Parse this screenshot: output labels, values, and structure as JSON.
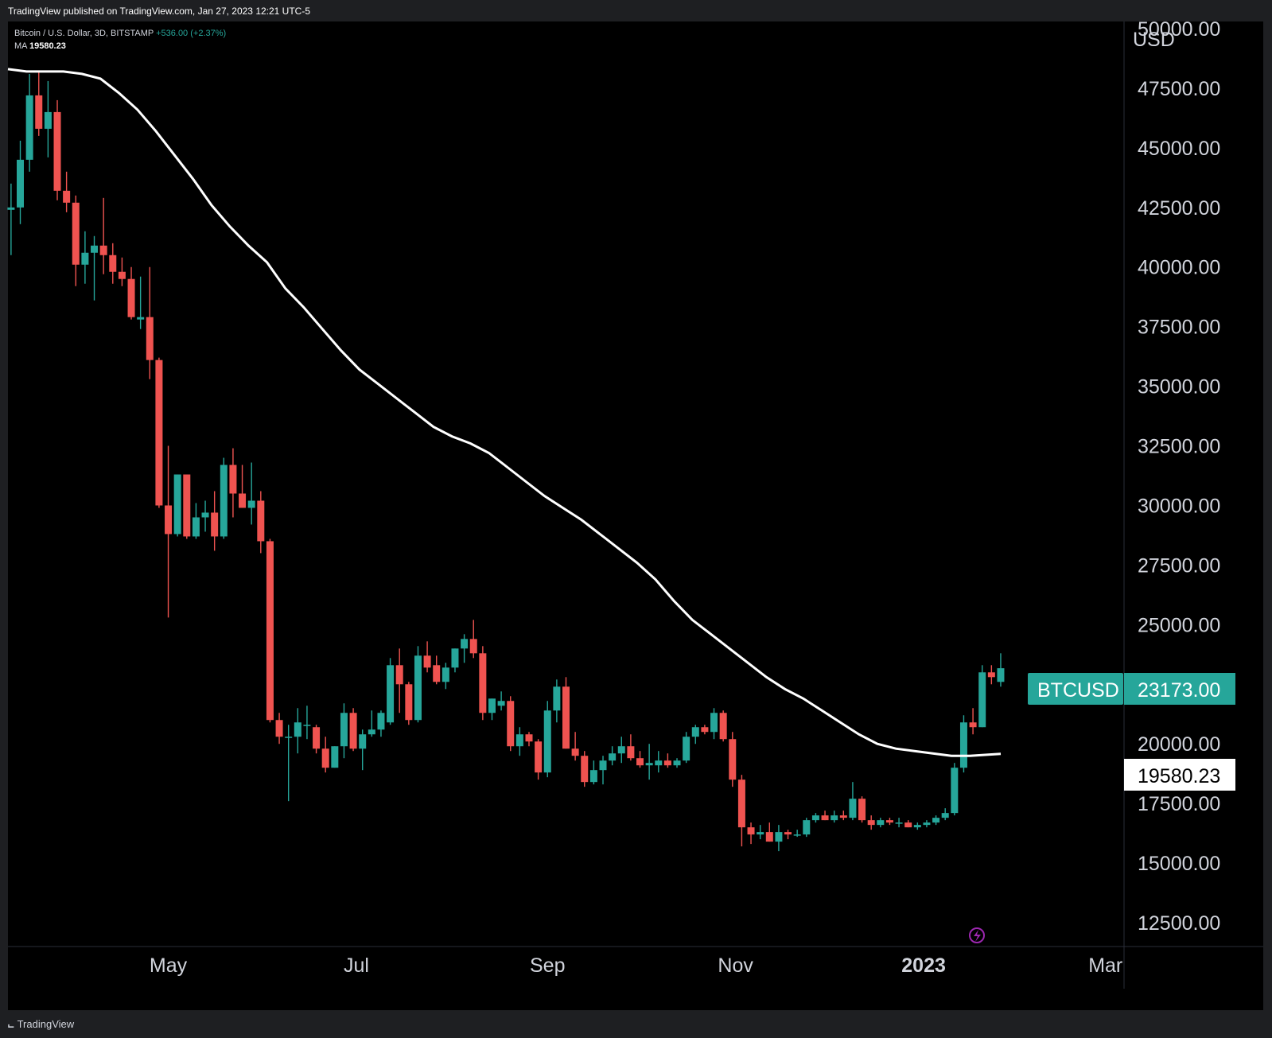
{
  "header": {
    "published": "TradingView published on TradingView.com, Jan 27, 2023 12:21 UTC-5"
  },
  "legend": {
    "symbol": "Bitcoin / U.S. Dollar, 3D, BITSTAMP",
    "change": "+536.00 (+2.37%)",
    "ma_label": "MA",
    "ma_value": "19580.23"
  },
  "footer": {
    "brand": "TradingView",
    "brand_icon": "tradingview-logo-icon"
  },
  "colors": {
    "up": "#26a69a",
    "down": "#ef5350",
    "ma": "#ffffff",
    "background": "#000000"
  },
  "chart_data": {
    "type": "candlestick",
    "symbol": "BTCUSD",
    "interval": "3D",
    "currency_label": "USD",
    "y_ticks": [
      "50000.00",
      "47500.00",
      "45000.00",
      "42500.00",
      "40000.00",
      "37500.00",
      "35000.00",
      "32500.00",
      "30000.00",
      "27500.00",
      "25000.00",
      "22500.00",
      "20000.00",
      "17500.00",
      "15000.00",
      "12500.00"
    ],
    "ylim": [
      11500,
      50300
    ],
    "x_tick_labels": [
      {
        "label": "May",
        "date": "2022-05-01",
        "bold": false
      },
      {
        "label": "Jul",
        "date": "2022-07-01",
        "bold": false
      },
      {
        "label": "Sep",
        "date": "2022-09-01",
        "bold": false
      },
      {
        "label": "Nov",
        "date": "2022-11-01",
        "bold": false
      },
      {
        "label": "2023",
        "date": "2023-01-01",
        "bold": true
      },
      {
        "label": "Mar",
        "date": "2023-03-01",
        "bold": false
      }
    ],
    "xlim": [
      "2022-03-10",
      "2023-03-07"
    ],
    "last_price_label": {
      "name": "BTCUSD",
      "value": "23173.00"
    },
    "ma_label_value": "19580.23",
    "candles": [
      {
        "d": "2022-03-11",
        "o": 42400,
        "h": 43500,
        "l": 40500,
        "c": 42500
      },
      {
        "d": "2022-03-14",
        "o": 42500,
        "h": 45300,
        "l": 41800,
        "c": 44500
      },
      {
        "d": "2022-03-17",
        "o": 44500,
        "h": 48100,
        "l": 44000,
        "c": 47200
      },
      {
        "d": "2022-03-20",
        "o": 47200,
        "h": 48200,
        "l": 45500,
        "c": 45800
      },
      {
        "d": "2022-03-23",
        "o": 45800,
        "h": 47800,
        "l": 44600,
        "c": 46500
      },
      {
        "d": "2022-03-26",
        "o": 46500,
        "h": 47000,
        "l": 42800,
        "c": 43200
      },
      {
        "d": "2022-03-29",
        "o": 43200,
        "h": 44000,
        "l": 42300,
        "c": 42700
      },
      {
        "d": "2022-04-01",
        "o": 42700,
        "h": 43000,
        "l": 39200,
        "c": 40100
      },
      {
        "d": "2022-04-04",
        "o": 40100,
        "h": 41500,
        "l": 39300,
        "c": 40600
      },
      {
        "d": "2022-04-07",
        "o": 40600,
        "h": 41300,
        "l": 38600,
        "c": 40900
      },
      {
        "d": "2022-04-10",
        "o": 40900,
        "h": 42900,
        "l": 39700,
        "c": 40500
      },
      {
        "d": "2022-04-13",
        "o": 40500,
        "h": 41000,
        "l": 39300,
        "c": 39800
      },
      {
        "d": "2022-04-16",
        "o": 39800,
        "h": 40400,
        "l": 39200,
        "c": 39500
      },
      {
        "d": "2022-04-19",
        "o": 39500,
        "h": 40000,
        "l": 37800,
        "c": 37900
      },
      {
        "d": "2022-04-22",
        "o": 37800,
        "h": 39600,
        "l": 37400,
        "c": 37900
      },
      {
        "d": "2022-04-25",
        "o": 37900,
        "h": 40000,
        "l": 35300,
        "c": 36100
      },
      {
        "d": "2022-04-28",
        "o": 36100,
        "h": 36200,
        "l": 29900,
        "c": 30000
      },
      {
        "d": "2022-05-01",
        "o": 30000,
        "h": 32500,
        "l": 25300,
        "c": 28800
      },
      {
        "d": "2022-05-04",
        "o": 28800,
        "h": 31300,
        "l": 28700,
        "c": 31300
      },
      {
        "d": "2022-05-07",
        "o": 31300,
        "h": 31300,
        "l": 28600,
        "c": 28700
      },
      {
        "d": "2022-05-10",
        "o": 28700,
        "h": 30100,
        "l": 28600,
        "c": 29500
      },
      {
        "d": "2022-05-13",
        "o": 29500,
        "h": 30200,
        "l": 28900,
        "c": 29700
      },
      {
        "d": "2022-05-16",
        "o": 29700,
        "h": 30600,
        "l": 28100,
        "c": 28700
      },
      {
        "d": "2022-05-19",
        "o": 28700,
        "h": 32000,
        "l": 28600,
        "c": 31700
      },
      {
        "d": "2022-05-22",
        "o": 31700,
        "h": 32400,
        "l": 29500,
        "c": 30500
      },
      {
        "d": "2022-05-25",
        "o": 30500,
        "h": 31700,
        "l": 29900,
        "c": 29900
      },
      {
        "d": "2022-05-28",
        "o": 29900,
        "h": 31800,
        "l": 29200,
        "c": 30200
      },
      {
        "d": "2022-05-31",
        "o": 30200,
        "h": 30600,
        "l": 28000,
        "c": 28500
      },
      {
        "d": "2022-06-03",
        "o": 28500,
        "h": 28600,
        "l": 20900,
        "c": 21000
      },
      {
        "d": "2022-06-06",
        "o": 21000,
        "h": 21300,
        "l": 20000,
        "c": 20300
      },
      {
        "d": "2022-06-09",
        "o": 20300,
        "h": 20800,
        "l": 17600,
        "c": 20300
      },
      {
        "d": "2022-06-12",
        "o": 20300,
        "h": 21500,
        "l": 19600,
        "c": 20900
      },
      {
        "d": "2022-06-15",
        "o": 20800,
        "h": 21600,
        "l": 20200,
        "c": 20800
      },
      {
        "d": "2022-06-18",
        "o": 20700,
        "h": 20800,
        "l": 19600,
        "c": 19800
      },
      {
        "d": "2022-06-21",
        "o": 19800,
        "h": 20300,
        "l": 18800,
        "c": 19000
      },
      {
        "d": "2022-06-24",
        "o": 19000,
        "h": 19900,
        "l": 19000,
        "c": 19900
      },
      {
        "d": "2022-06-27",
        "o": 19900,
        "h": 21700,
        "l": 19400,
        "c": 21300
      },
      {
        "d": "2022-06-30",
        "o": 21300,
        "h": 21500,
        "l": 19700,
        "c": 19800
      },
      {
        "d": "2022-07-03",
        "o": 19800,
        "h": 20600,
        "l": 18900,
        "c": 20400
      },
      {
        "d": "2022-07-06",
        "o": 20400,
        "h": 21400,
        "l": 20300,
        "c": 20600
      },
      {
        "d": "2022-07-09",
        "o": 20600,
        "h": 21400,
        "l": 20300,
        "c": 21300
      },
      {
        "d": "2022-07-12",
        "o": 20900,
        "h": 23600,
        "l": 20800,
        "c": 23300
      },
      {
        "d": "2022-07-15",
        "o": 23300,
        "h": 24000,
        "l": 21300,
        "c": 22500
      },
      {
        "d": "2022-07-18",
        "o": 22500,
        "h": 22600,
        "l": 20800,
        "c": 21000
      },
      {
        "d": "2022-07-21",
        "o": 21000,
        "h": 24100,
        "l": 20900,
        "c": 23700
      },
      {
        "d": "2022-07-24",
        "o": 23700,
        "h": 24300,
        "l": 23000,
        "c": 23200
      },
      {
        "d": "2022-07-27",
        "o": 23300,
        "h": 23700,
        "l": 22500,
        "c": 22600
      },
      {
        "d": "2022-07-30",
        "o": 22600,
        "h": 23400,
        "l": 22300,
        "c": 23200
      },
      {
        "d": "2022-08-02",
        "o": 23200,
        "h": 24000,
        "l": 23000,
        "c": 24000
      },
      {
        "d": "2022-08-05",
        "o": 24000,
        "h": 24600,
        "l": 23400,
        "c": 24400
      },
      {
        "d": "2022-08-08",
        "o": 24400,
        "h": 25200,
        "l": 23600,
        "c": 23800
      },
      {
        "d": "2022-08-11",
        "o": 23800,
        "h": 24100,
        "l": 21000,
        "c": 21300
      },
      {
        "d": "2022-08-14",
        "o": 21300,
        "h": 21900,
        "l": 21000,
        "c": 21900
      },
      {
        "d": "2022-08-17",
        "o": 21600,
        "h": 22200,
        "l": 21400,
        "c": 21800
      },
      {
        "d": "2022-08-20",
        "o": 21800,
        "h": 22000,
        "l": 19700,
        "c": 19900
      },
      {
        "d": "2022-08-23",
        "o": 19900,
        "h": 20700,
        "l": 19500,
        "c": 20400
      },
      {
        "d": "2022-08-26",
        "o": 20400,
        "h": 20500,
        "l": 19900,
        "c": 20100
      },
      {
        "d": "2022-08-29",
        "o": 20100,
        "h": 20200,
        "l": 18500,
        "c": 18800
      },
      {
        "d": "2022-09-01",
        "o": 18800,
        "h": 21800,
        "l": 18600,
        "c": 21400
      },
      {
        "d": "2022-09-04",
        "o": 21400,
        "h": 22700,
        "l": 20900,
        "c": 22400
      },
      {
        "d": "2022-09-07",
        "o": 22400,
        "h": 22800,
        "l": 19800,
        "c": 19800
      },
      {
        "d": "2022-09-10",
        "o": 19800,
        "h": 20500,
        "l": 19300,
        "c": 19500
      },
      {
        "d": "2022-09-13",
        "o": 19500,
        "h": 19700,
        "l": 18200,
        "c": 18400
      },
      {
        "d": "2022-09-16",
        "o": 18400,
        "h": 19300,
        "l": 18300,
        "c": 18900
      },
      {
        "d": "2022-09-19",
        "o": 18900,
        "h": 19500,
        "l": 18300,
        "c": 19300
      },
      {
        "d": "2022-09-22",
        "o": 19300,
        "h": 19900,
        "l": 19100,
        "c": 19600
      },
      {
        "d": "2022-09-25",
        "o": 19600,
        "h": 20300,
        "l": 19200,
        "c": 19900
      },
      {
        "d": "2022-09-28",
        "o": 19900,
        "h": 20400,
        "l": 19300,
        "c": 19400
      },
      {
        "d": "2022-10-01",
        "o": 19400,
        "h": 19700,
        "l": 19000,
        "c": 19100
      },
      {
        "d": "2022-10-04",
        "o": 19100,
        "h": 20000,
        "l": 18500,
        "c": 19200
      },
      {
        "d": "2022-10-07",
        "o": 19100,
        "h": 19700,
        "l": 18800,
        "c": 19300
      },
      {
        "d": "2022-10-10",
        "o": 19300,
        "h": 19600,
        "l": 19000,
        "c": 19100
      },
      {
        "d": "2022-10-13",
        "o": 19100,
        "h": 19400,
        "l": 19000,
        "c": 19300
      },
      {
        "d": "2022-10-16",
        "o": 19300,
        "h": 20500,
        "l": 19200,
        "c": 20300
      },
      {
        "d": "2022-10-19",
        "o": 20300,
        "h": 20800,
        "l": 20000,
        "c": 20700
      },
      {
        "d": "2022-10-22",
        "o": 20700,
        "h": 20800,
        "l": 20400,
        "c": 20500
      },
      {
        "d": "2022-10-25",
        "o": 20500,
        "h": 21500,
        "l": 20200,
        "c": 21300
      },
      {
        "d": "2022-10-28",
        "o": 21300,
        "h": 21400,
        "l": 20100,
        "c": 20200
      },
      {
        "d": "2022-10-31",
        "o": 20200,
        "h": 20500,
        "l": 18200,
        "c": 18500
      },
      {
        "d": "2022-11-03",
        "o": 18500,
        "h": 18700,
        "l": 15700,
        "c": 16500
      },
      {
        "d": "2022-11-06",
        "o": 16500,
        "h": 16700,
        "l": 15800,
        "c": 16200
      },
      {
        "d": "2022-11-09",
        "o": 16200,
        "h": 16600,
        "l": 16000,
        "c": 16300
      },
      {
        "d": "2022-11-12",
        "o": 16300,
        "h": 16700,
        "l": 15900,
        "c": 15900
      },
      {
        "d": "2022-11-15",
        "o": 15900,
        "h": 16600,
        "l": 15500,
        "c": 16300
      },
      {
        "d": "2022-11-18",
        "o": 16300,
        "h": 16400,
        "l": 16000,
        "c": 16200
      },
      {
        "d": "2022-11-21",
        "o": 16200,
        "h": 16400,
        "l": 16100,
        "c": 16200
      },
      {
        "d": "2022-11-24",
        "o": 16200,
        "h": 16900,
        "l": 16100,
        "c": 16800
      },
      {
        "d": "2022-11-27",
        "o": 16800,
        "h": 17100,
        "l": 16700,
        "c": 17000
      },
      {
        "d": "2022-11-30",
        "o": 17000,
        "h": 17200,
        "l": 16800,
        "c": 16800
      },
      {
        "d": "2022-12-03",
        "o": 16800,
        "h": 17200,
        "l": 16700,
        "c": 17000
      },
      {
        "d": "2022-12-06",
        "o": 17000,
        "h": 17200,
        "l": 16800,
        "c": 16900
      },
      {
        "d": "2022-12-09",
        "o": 16900,
        "h": 18400,
        "l": 16800,
        "c": 17700
      },
      {
        "d": "2022-12-12",
        "o": 17700,
        "h": 17800,
        "l": 16700,
        "c": 16800
      },
      {
        "d": "2022-12-15",
        "o": 16800,
        "h": 17000,
        "l": 16400,
        "c": 16600
      },
      {
        "d": "2022-12-18",
        "o": 16600,
        "h": 16900,
        "l": 16500,
        "c": 16800
      },
      {
        "d": "2022-12-21",
        "o": 16800,
        "h": 16900,
        "l": 16600,
        "c": 16700
      },
      {
        "d": "2022-12-24",
        "o": 16700,
        "h": 16900,
        "l": 16500,
        "c": 16700
      },
      {
        "d": "2022-12-27",
        "o": 16700,
        "h": 16800,
        "l": 16500,
        "c": 16500
      },
      {
        "d": "2022-12-30",
        "o": 16500,
        "h": 16700,
        "l": 16400,
        "c": 16600
      },
      {
        "d": "2023-01-02",
        "o": 16600,
        "h": 16800,
        "l": 16500,
        "c": 16700
      },
      {
        "d": "2023-01-05",
        "o": 16700,
        "h": 17000,
        "l": 16600,
        "c": 16900
      },
      {
        "d": "2023-01-08",
        "o": 16900,
        "h": 17300,
        "l": 16800,
        "c": 17100
      },
      {
        "d": "2023-01-11",
        "o": 17100,
        "h": 19200,
        "l": 17000,
        "c": 19000
      },
      {
        "d": "2023-01-14",
        "o": 19000,
        "h": 21200,
        "l": 18800,
        "c": 20900
      },
      {
        "d": "2023-01-17",
        "o": 20900,
        "h": 21500,
        "l": 20400,
        "c": 20700
      },
      {
        "d": "2023-01-20",
        "o": 20700,
        "h": 23300,
        "l": 20700,
        "c": 23000
      },
      {
        "d": "2023-01-23",
        "o": 23000,
        "h": 23300,
        "l": 22500,
        "c": 22800
      },
      {
        "d": "2023-01-26",
        "o": 22600,
        "h": 23800,
        "l": 22400,
        "c": 23173
      }
    ],
    "ma_series": [
      {
        "d": "2022-03-10",
        "v": 48300
      },
      {
        "d": "2022-03-16",
        "v": 48200
      },
      {
        "d": "2022-03-22",
        "v": 48200
      },
      {
        "d": "2022-03-28",
        "v": 48200
      },
      {
        "d": "2022-04-03",
        "v": 48100
      },
      {
        "d": "2022-04-09",
        "v": 47900
      },
      {
        "d": "2022-04-15",
        "v": 47300
      },
      {
        "d": "2022-04-21",
        "v": 46600
      },
      {
        "d": "2022-04-27",
        "v": 45700
      },
      {
        "d": "2022-05-03",
        "v": 44700
      },
      {
        "d": "2022-05-09",
        "v": 43700
      },
      {
        "d": "2022-05-15",
        "v": 42600
      },
      {
        "d": "2022-05-21",
        "v": 41700
      },
      {
        "d": "2022-05-27",
        "v": 40900
      },
      {
        "d": "2022-06-02",
        "v": 40200
      },
      {
        "d": "2022-06-08",
        "v": 39100
      },
      {
        "d": "2022-06-14",
        "v": 38300
      },
      {
        "d": "2022-06-20",
        "v": 37400
      },
      {
        "d": "2022-06-26",
        "v": 36500
      },
      {
        "d": "2022-07-02",
        "v": 35700
      },
      {
        "d": "2022-07-08",
        "v": 35100
      },
      {
        "d": "2022-07-14",
        "v": 34500
      },
      {
        "d": "2022-07-20",
        "v": 33900
      },
      {
        "d": "2022-07-26",
        "v": 33300
      },
      {
        "d": "2022-08-01",
        "v": 32900
      },
      {
        "d": "2022-08-07",
        "v": 32600
      },
      {
        "d": "2022-08-13",
        "v": 32200
      },
      {
        "d": "2022-08-19",
        "v": 31600
      },
      {
        "d": "2022-08-25",
        "v": 31000
      },
      {
        "d": "2022-08-31",
        "v": 30400
      },
      {
        "d": "2022-09-06",
        "v": 29900
      },
      {
        "d": "2022-09-12",
        "v": 29400
      },
      {
        "d": "2022-09-18",
        "v": 28800
      },
      {
        "d": "2022-09-24",
        "v": 28200
      },
      {
        "d": "2022-09-30",
        "v": 27600
      },
      {
        "d": "2022-10-06",
        "v": 26900
      },
      {
        "d": "2022-10-12",
        "v": 26000
      },
      {
        "d": "2022-10-18",
        "v": 25200
      },
      {
        "d": "2022-10-24",
        "v": 24600
      },
      {
        "d": "2022-10-30",
        "v": 24000
      },
      {
        "d": "2022-11-05",
        "v": 23400
      },
      {
        "d": "2022-11-11",
        "v": 22800
      },
      {
        "d": "2022-11-17",
        "v": 22300
      },
      {
        "d": "2022-11-23",
        "v": 21900
      },
      {
        "d": "2022-11-29",
        "v": 21400
      },
      {
        "d": "2022-12-05",
        "v": 20900
      },
      {
        "d": "2022-12-11",
        "v": 20400
      },
      {
        "d": "2022-12-17",
        "v": 20000
      },
      {
        "d": "2022-12-23",
        "v": 19800
      },
      {
        "d": "2022-12-29",
        "v": 19700
      },
      {
        "d": "2023-01-04",
        "v": 19600
      },
      {
        "d": "2023-01-10",
        "v": 19500
      },
      {
        "d": "2023-01-16",
        "v": 19500
      },
      {
        "d": "2023-01-22",
        "v": 19550
      },
      {
        "d": "2023-01-26",
        "v": 19580
      }
    ]
  }
}
